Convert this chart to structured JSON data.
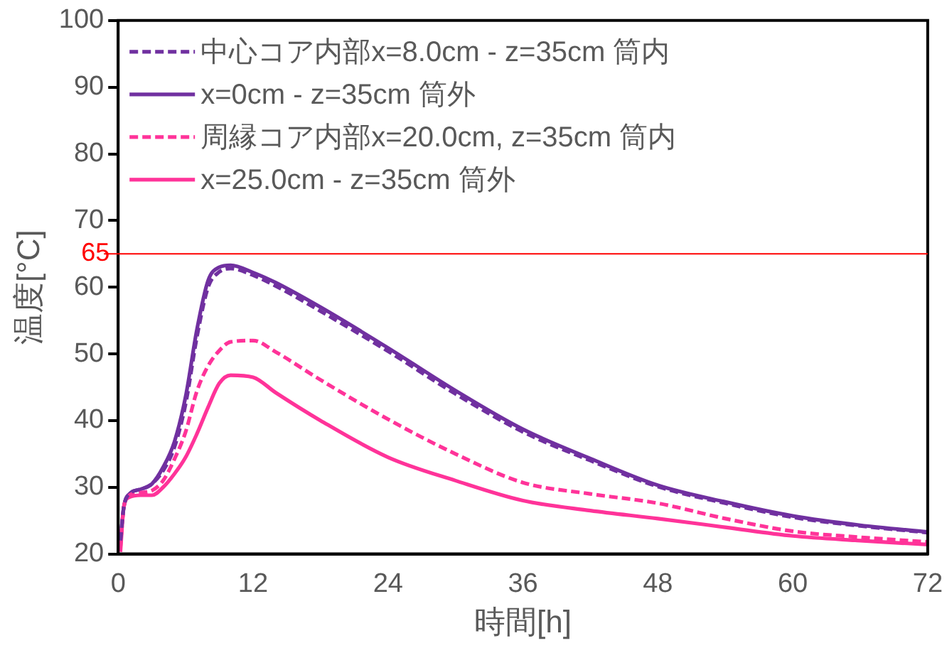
{
  "chart_data": {
    "type": "line",
    "xlabel": "時間[h]",
    "ylabel": "温度[°C]",
    "x": [
      0.2,
      0.5,
      1,
      2,
      3,
      4,
      5,
      6,
      7,
      8,
      9,
      10,
      12,
      14,
      18,
      24,
      30,
      36,
      42,
      48,
      54,
      60,
      66,
      72
    ],
    "series": [
      {
        "name": "中心コア内部x=8.0cm - z=35cm 筒内",
        "color": "#7030a0",
        "line_style": "dashed",
        "values": [
          22,
          27,
          29,
          29.7,
          30.5,
          32.5,
          36,
          42.5,
          52.5,
          60,
          62.3,
          62.8,
          61.8,
          60.2,
          56.4,
          50.4,
          44,
          38.3,
          34,
          30.1,
          27.6,
          25.5,
          24.2,
          23.2
        ]
      },
      {
        "name": "x=0cm - z=35cm 筒外",
        "color": "#7030a0",
        "line_style": "solid",
        "values": [
          22,
          27,
          29,
          29.7,
          30.5,
          33,
          36.8,
          43.6,
          53.6,
          61,
          63,
          63.3,
          62.2,
          60.7,
          57,
          50.9,
          44.5,
          38.7,
          34.3,
          30.3,
          27.8,
          25.7,
          24.3,
          23.3
        ]
      },
      {
        "name": "周縁コア内部x=20.0cm, z=35cm 筒内",
        "color": "#ff3399",
        "line_style": "dashed",
        "values": [
          21,
          27,
          28.8,
          29.2,
          29.5,
          31,
          34.2,
          38.3,
          44.4,
          48.2,
          50.5,
          51.8,
          52,
          50.3,
          46.1,
          40.2,
          35,
          30.7,
          29,
          27.6,
          25.3,
          23.4,
          22.5,
          21.8
        ]
      },
      {
        "name": "x=25.0cm - z=35cm 筒外",
        "color": "#ff3399",
        "line_style": "solid",
        "values": [
          20.3,
          27,
          28.5,
          28.8,
          28.8,
          30,
          32,
          34.5,
          38,
          42,
          45.6,
          46.8,
          46.5,
          44.2,
          40,
          34.5,
          31,
          28,
          26.5,
          25.3,
          24,
          22.7,
          22,
          21.4
        ]
      }
    ],
    "xlim": [
      0,
      72
    ],
    "xticks": [
      0,
      12,
      24,
      36,
      48,
      60,
      72
    ],
    "ylim": [
      20,
      100
    ],
    "yticks": [
      20,
      30,
      40,
      50,
      60,
      70,
      80,
      90,
      100
    ],
    "ref_lines": [
      {
        "axis": "y",
        "value": 65,
        "label": "65",
        "color": "#ff0000"
      }
    ],
    "grid": false,
    "legend": "top left",
    "marker": "none"
  }
}
